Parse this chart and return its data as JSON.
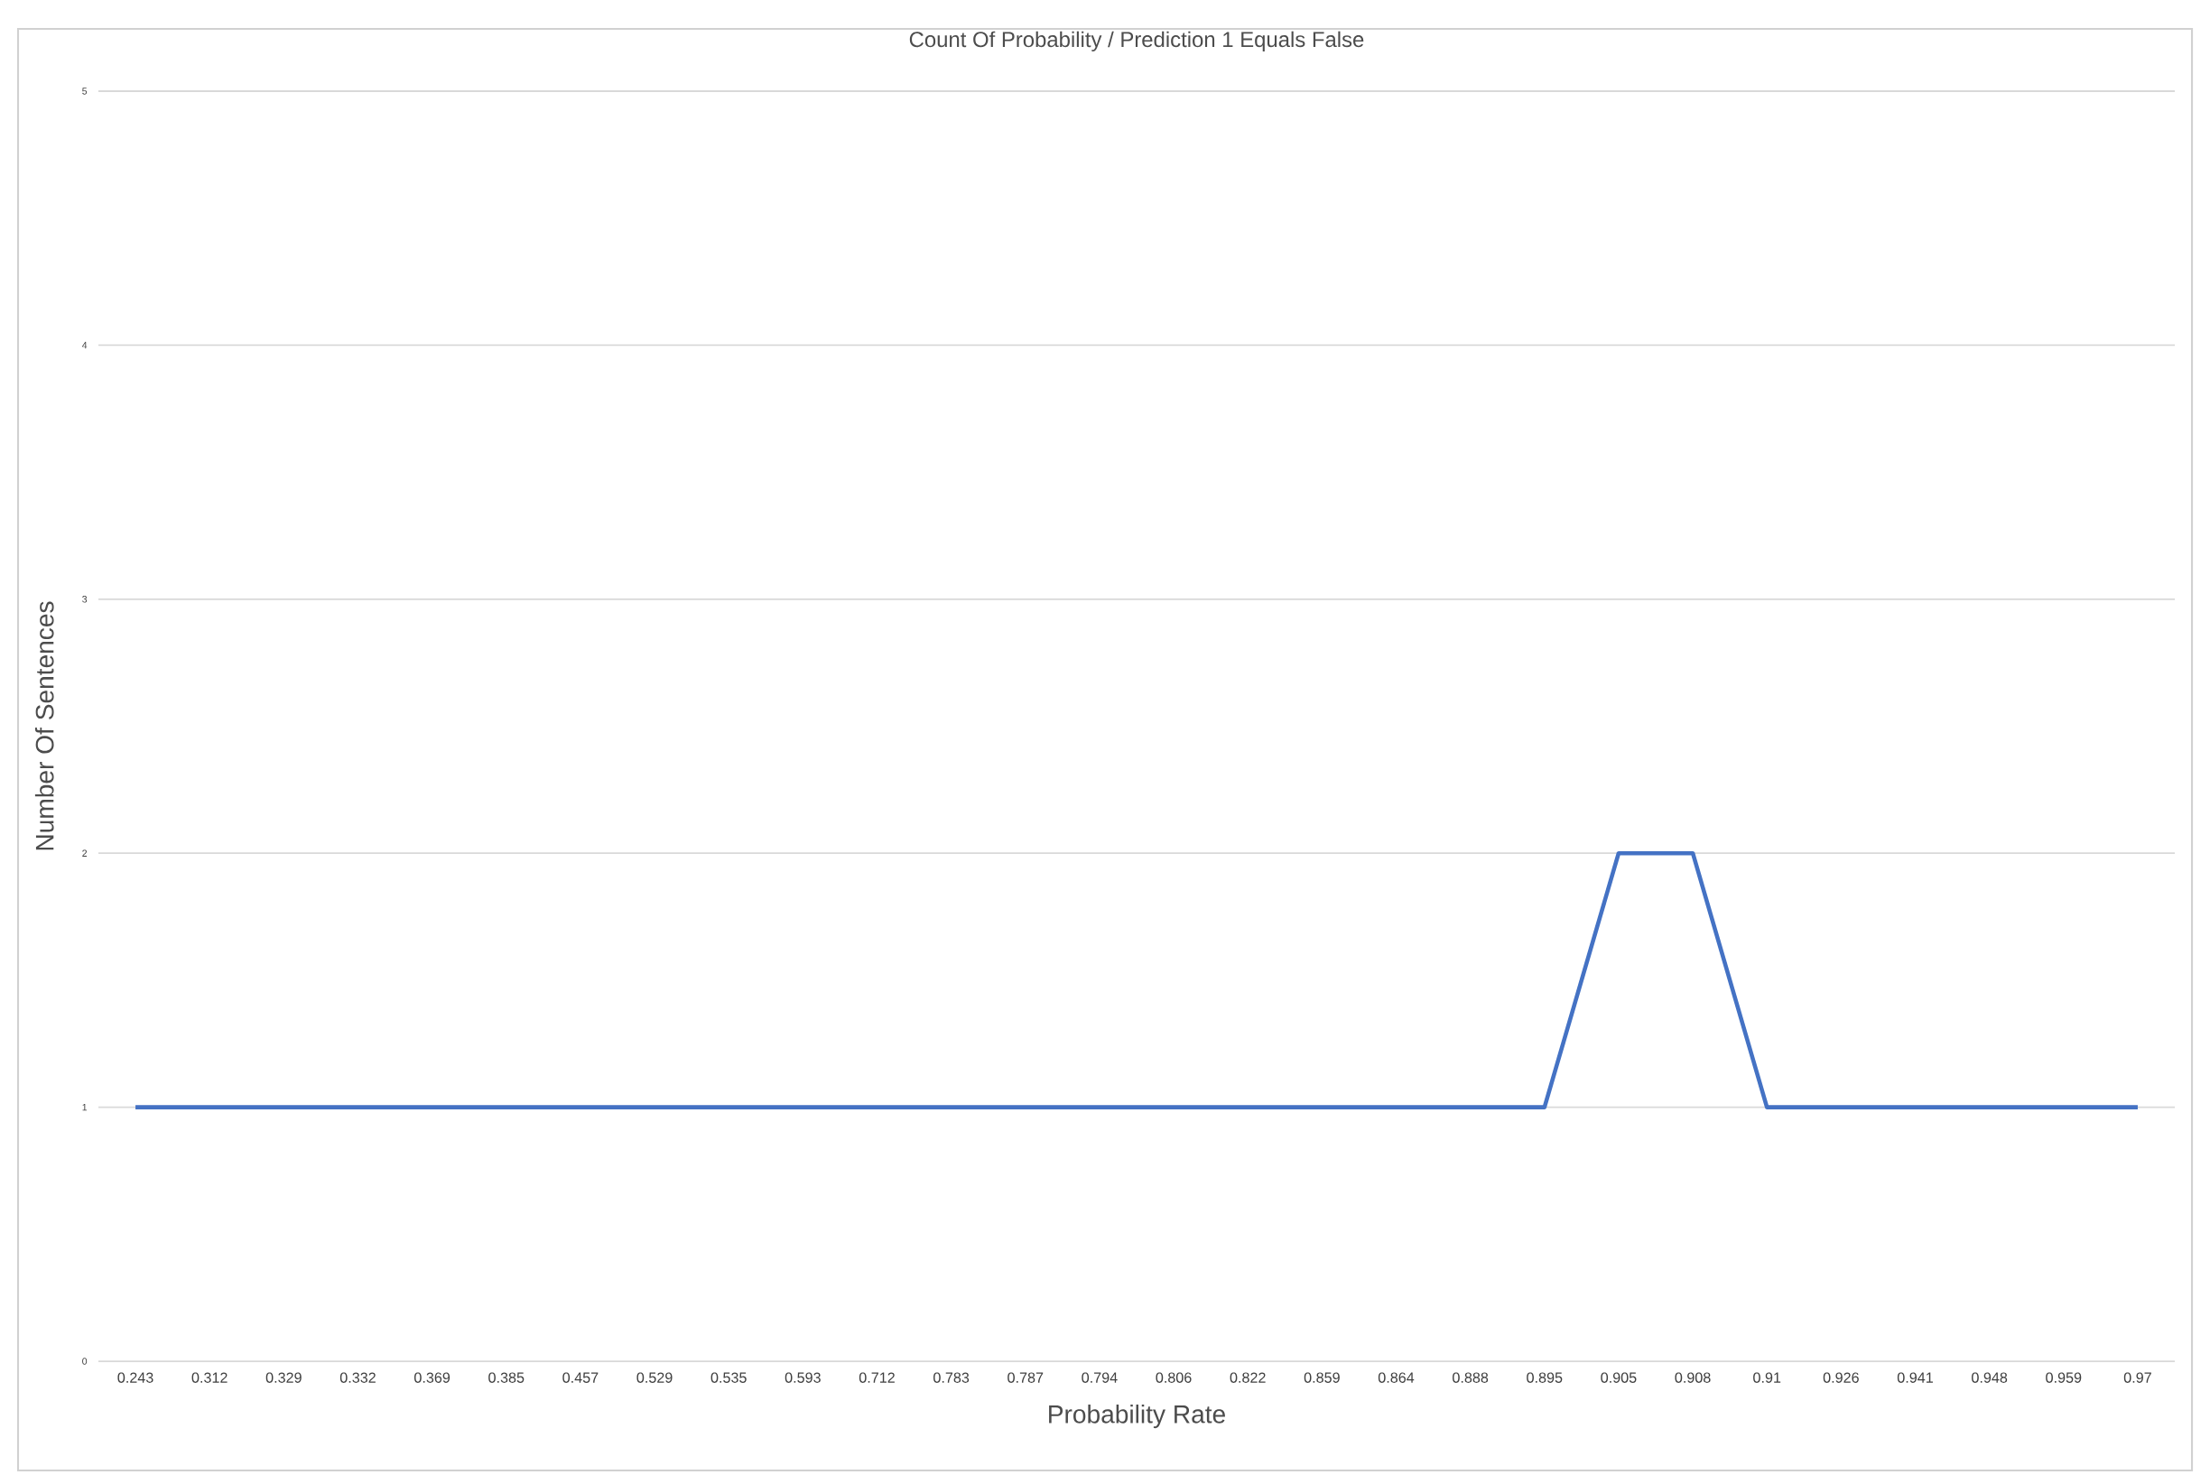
{
  "chart_data": {
    "type": "line",
    "title": "Count Of Probability / Prediction 1 Equals False",
    "xlabel": "Probability Rate",
    "ylabel": "Number Of Sentences",
    "categories": [
      "0.243",
      "0.312",
      "0.329",
      "0.332",
      "0.369",
      "0.385",
      "0.457",
      "0.529",
      "0.535",
      "0.593",
      "0.712",
      "0.783",
      "0.787",
      "0.794",
      "0.806",
      "0.822",
      "0.859",
      "0.864",
      "0.888",
      "0.895",
      "0.905",
      "0.908",
      "0.91",
      "0.926",
      "0.941",
      "0.948",
      "0.959",
      "0.97"
    ],
    "values": [
      1,
      1,
      1,
      1,
      1,
      1,
      1,
      1,
      1,
      1,
      1,
      1,
      1,
      1,
      1,
      1,
      1,
      1,
      1,
      1,
      2,
      2,
      1,
      1,
      1,
      1,
      1,
      1
    ],
    "color": "#4472c4",
    "ylim": [
      0,
      5
    ],
    "yticks": [
      0,
      1,
      2,
      3,
      4,
      5
    ],
    "grid": "y"
  }
}
